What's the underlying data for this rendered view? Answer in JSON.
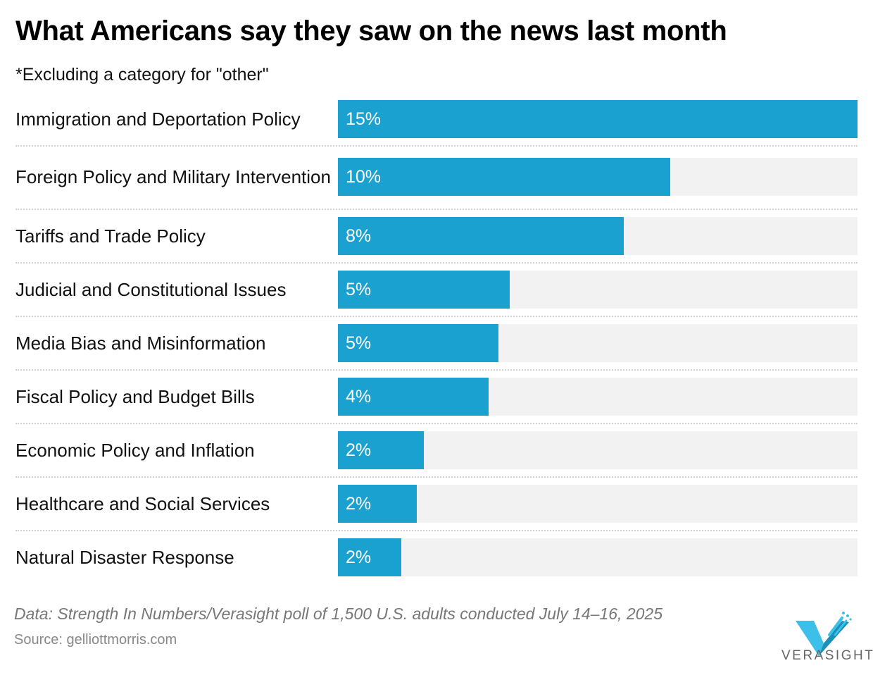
{
  "chart_data": {
    "type": "bar",
    "orientation": "horizontal",
    "title": "What Americans say they saw on the news last month",
    "subtitle": "*Excluding a category for \"other\"",
    "categories": [
      "Immigration and Deportation Policy",
      "Foreign Policy and Military Intervention",
      "Tariffs and Trade Policy",
      "Judicial and Constitutional Issues",
      "Media Bias and Misinformation",
      "Fiscal Policy and Budget Bills",
      "Economic Policy and Inflation",
      "Healthcare and Social Services",
      "Natural Disaster Response"
    ],
    "values": [
      15,
      9.6,
      8.25,
      4.96,
      4.63,
      4.35,
      2.48,
      2.28,
      1.83
    ],
    "value_labels": [
      "15%",
      "10%",
      "8%",
      "5%",
      "5%",
      "4%",
      "2%",
      "2%",
      "2%"
    ],
    "xlim": [
      0,
      15
    ],
    "unit": "%",
    "bar_color": "#1ba1cf",
    "track_color": "#f2f2f2"
  },
  "footer": {
    "note": "Data: Strength In Numbers/Verasight poll of 1,500 U.S. adults conducted July 14–16, 2025",
    "source": "Source: gelliottmorris.com",
    "logo_text": "VERASIGHT"
  }
}
